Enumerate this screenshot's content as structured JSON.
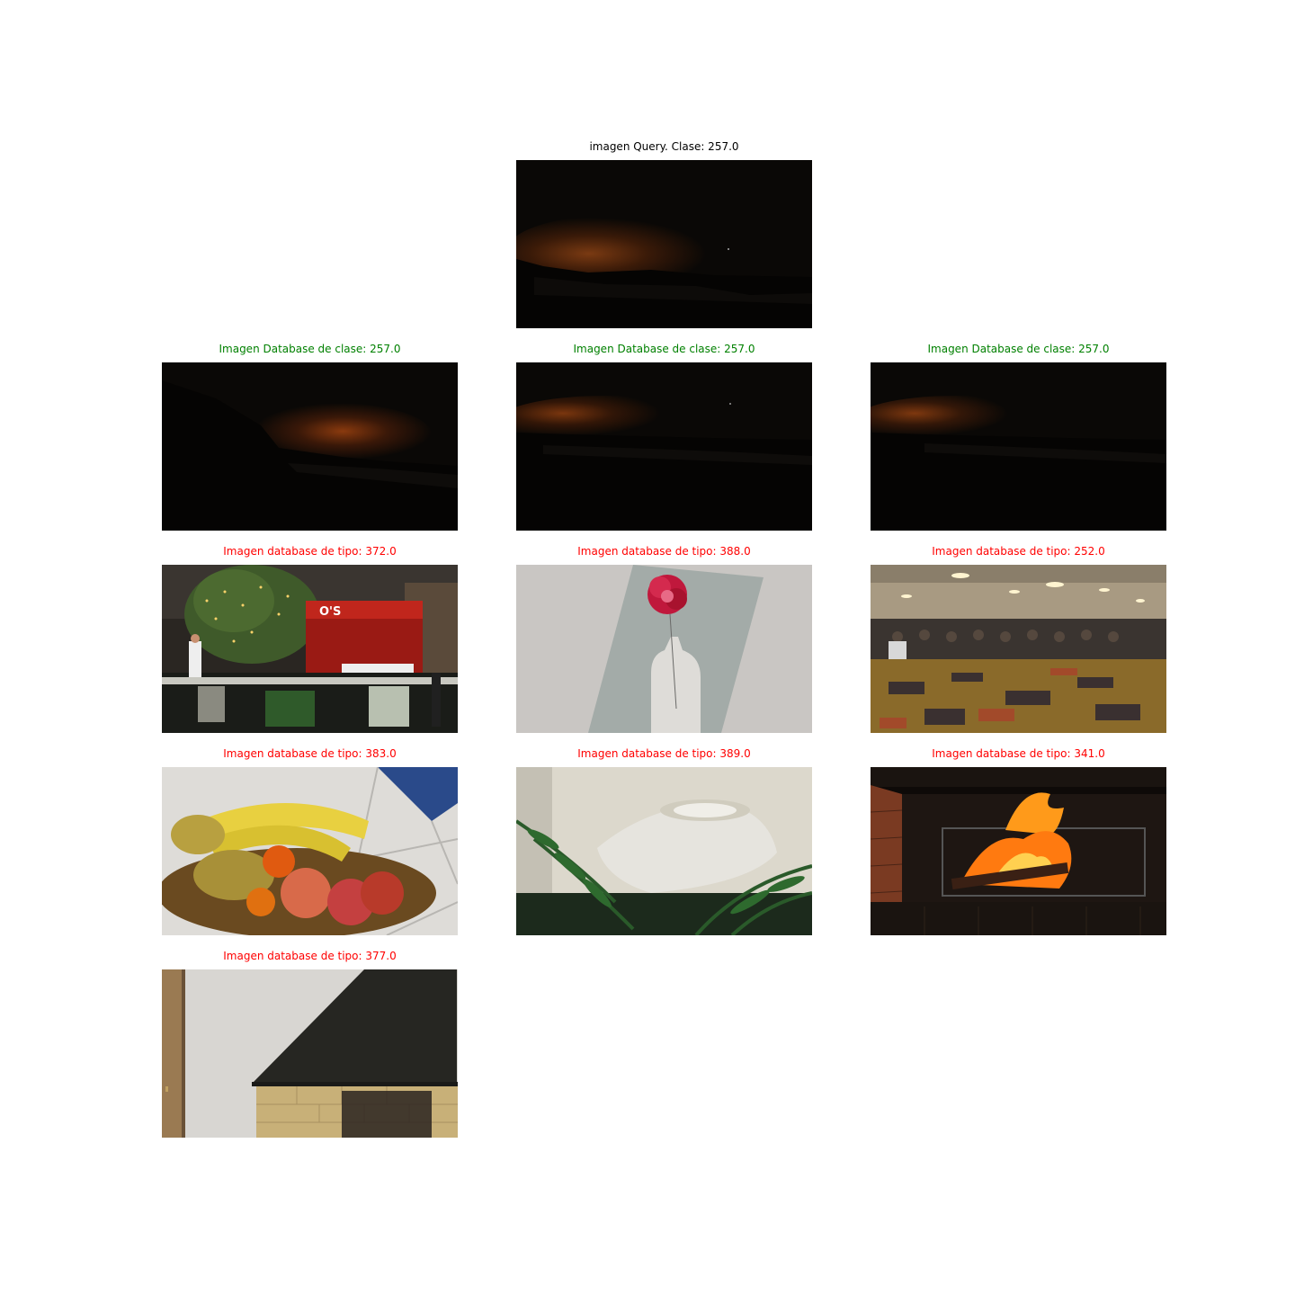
{
  "query": {
    "title": "imagen Query. Clase: 257.0",
    "title_color": "#000000",
    "scene": "night-skyline-glow"
  },
  "results": [
    {
      "title": "Imagen Database de clase: 257.0",
      "title_color": "#008000",
      "scene": "night-skyline-glow"
    },
    {
      "title": "Imagen Database de clase: 257.0",
      "title_color": "#008000",
      "scene": "night-skyline-glow"
    },
    {
      "title": "Imagen Database de clase: 257.0",
      "title_color": "#008000",
      "scene": "night-skyline-glow"
    },
    {
      "title": "Imagen database de tipo: 372.0",
      "title_color": "#ff0000",
      "scene": "restaurant-patio",
      "sign_text": "O'S"
    },
    {
      "title": "Imagen database de tipo: 388.0",
      "title_color": "#ff0000",
      "scene": "flower-vase-painting"
    },
    {
      "title": "Imagen database de tipo: 252.0",
      "title_color": "#ff0000",
      "scene": "conference-hall"
    },
    {
      "title": "Imagen database de tipo: 383.0",
      "title_color": "#ff0000",
      "scene": "fruit-bowl"
    },
    {
      "title": "Imagen database de tipo: 389.0",
      "title_color": "#ff0000",
      "scene": "lampshade-fern"
    },
    {
      "title": "Imagen database de tipo: 341.0",
      "title_color": "#ff0000",
      "scene": "fireplace-fire"
    },
    {
      "title": "Imagen database de tipo: 377.0",
      "title_color": "#ff0000",
      "scene": "fireplace-hood"
    }
  ]
}
